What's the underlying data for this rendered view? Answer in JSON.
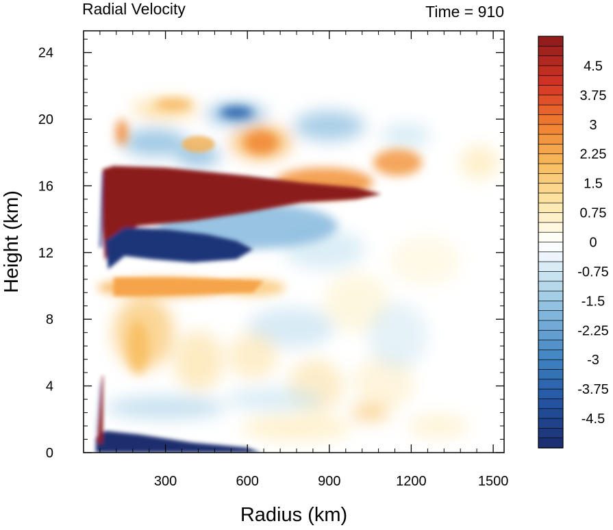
{
  "chart_data": {
    "type": "heatmap",
    "title": "Radial Velocity",
    "subtitle": "Time = 910",
    "xlabel": "Radius (km)",
    "ylabel": "Height (km)",
    "xlim": [
      0,
      1540
    ],
    "ylim": [
      0,
      25.3
    ],
    "x_ticks": [
      300,
      600,
      900,
      1200,
      1500
    ],
    "x_tick_labels": [
      "300",
      "600",
      "900",
      "1200",
      "1500"
    ],
    "y_ticks": [
      0,
      4,
      8,
      12,
      16,
      20,
      24
    ],
    "y_tick_labels": [
      "0",
      "4",
      "8",
      "12",
      "16",
      "20",
      "24"
    ],
    "grid": false,
    "colorbar": {
      "min": -5.25,
      "max": 5.25,
      "step": 0.25,
      "labels": [
        "4.5",
        "3.75",
        "3",
        "2.25",
        "1.5",
        "0.75",
        "0",
        "-0.75",
        "-1.5",
        "-2.25",
        "-3",
        "-3.75",
        "-4.5"
      ],
      "label_values": [
        4.5,
        3.75,
        3,
        2.25,
        1.5,
        0.75,
        0,
        -0.75,
        -1.5,
        -2.25,
        -3,
        -3.75,
        -4.5
      ],
      "colormap": "diverging blue-white-red",
      "colors": {
        "max": "#8b1a1a",
        "positive_strong": "#c8232a",
        "positive_mid": "#f07f2f",
        "positive_weak": "#fde6a8",
        "zero": "#ffffff",
        "negative_weak": "#d6ebf5",
        "negative_mid": "#5e9fd1",
        "negative_strong": "#2457a5",
        "min": "#1b2d6e"
      }
    },
    "features": [
      {
        "name": "upper outflow",
        "sign": "positive",
        "x_range": [
          65,
          1100
        ],
        "z_range": [
          13.5,
          17.2
        ],
        "peak": 5.25
      },
      {
        "name": "upper-level inflow",
        "sign": "negative",
        "x_range": [
          70,
          800
        ],
        "z_range": [
          11,
          13.8
        ],
        "peak": -5.0
      },
      {
        "name": "mid-level outflow band",
        "sign": "positive",
        "x_range": [
          70,
          700
        ],
        "z_range": [
          9.3,
          10.8
        ],
        "peak": 2.6
      },
      {
        "name": "boundary layer inflow",
        "sign": "negative",
        "x_range": [
          45,
          650
        ],
        "z_range": [
          0,
          1.2
        ],
        "peak": -5.25
      },
      {
        "name": "eyewall outflow",
        "sign": "positive",
        "x_range": [
          45,
          70
        ],
        "z_range": [
          0.3,
          4.6
        ],
        "peak": 5.25
      },
      {
        "name": "secondary outflow",
        "sign": "positive",
        "x_range": [
          650,
          1250
        ],
        "z_range": [
          15.5,
          18.5
        ],
        "peak": 3.0
      }
    ]
  }
}
